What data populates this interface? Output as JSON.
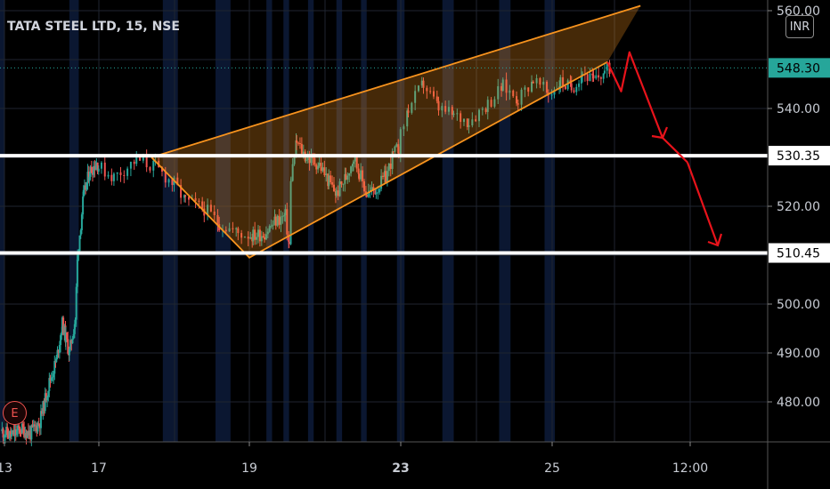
{
  "header": {
    "title": "TATA STEEL LTD, 15, NSE"
  },
  "currency_button": "INR",
  "earnings_marker": "E",
  "colors": {
    "up": "#26a69a",
    "down": "#ef5350",
    "pattern": "#f7931e",
    "support": "#ffffff",
    "arrow": "#e8131b"
  },
  "chart_data": {
    "type": "candlestick",
    "title": "TATA STEEL LTD, 15, NSE",
    "currency": "INR",
    "y_ticks": [
      480,
      490,
      500,
      510,
      520,
      530,
      540,
      550,
      560
    ],
    "y_tick_labels": [
      "480.00",
      "490.00",
      "500.00",
      "",
      "520.00",
      "",
      "540.00",
      "",
      "560.00"
    ],
    "ylim": [
      472,
      562
    ],
    "x_tick_labels": [
      "13",
      "17",
      "19",
      "23",
      "25",
      "12:00"
    ],
    "current_price": "548.30",
    "current_price_value": 548.3,
    "support_levels": [
      {
        "value": 530.35,
        "label": "530.35"
      },
      {
        "value": 510.45,
        "label": "510.45"
      }
    ],
    "rising_wedge": {
      "upper": [
        [
          17.7,
          530
        ],
        [
          26.6,
          561
        ]
      ],
      "lower": [
        [
          17.7,
          530
        ],
        [
          19.0,
          509.5
        ],
        [
          26.0,
          549.5
        ]
      ]
    },
    "projected_path": [
      [
        26.0,
        549.5
      ],
      [
        26.25,
        543.5
      ],
      [
        26.4,
        551.5
      ],
      [
        27.0,
        534
      ],
      [
        27.45,
        529
      ],
      [
        28.0,
        512
      ]
    ],
    "price_path": [
      [
        12.9,
        474
      ],
      [
        13.3,
        473
      ],
      [
        13.7,
        474.5
      ],
      [
        14.1,
        473.5
      ],
      [
        14.5,
        476
      ],
      [
        14.9,
        484
      ],
      [
        15.2,
        488.5
      ],
      [
        15.45,
        496
      ],
      [
        15.6,
        493
      ],
      [
        15.75,
        490
      ],
      [
        16.0,
        497
      ],
      [
        16.1,
        510
      ],
      [
        16.35,
        522
      ],
      [
        16.6,
        527
      ],
      [
        16.9,
        529
      ],
      [
        17.2,
        526
      ],
      [
        17.5,
        529.5
      ],
      [
        17.75,
        528
      ],
      [
        18.0,
        524.5
      ],
      [
        18.15,
        521
      ],
      [
        18.4,
        519.5
      ],
      [
        18.6,
        516.5
      ],
      [
        18.85,
        514.5
      ],
      [
        19.1,
        514
      ],
      [
        19.4,
        514.5
      ],
      [
        19.7,
        517
      ],
      [
        19.95,
        518
      ],
      [
        20.05,
        512
      ],
      [
        20.1,
        526
      ],
      [
        20.25,
        533
      ],
      [
        20.5,
        530
      ],
      [
        20.85,
        528.5
      ],
      [
        21.1,
        525
      ],
      [
        21.3,
        522.5
      ],
      [
        21.55,
        526
      ],
      [
        21.75,
        530
      ],
      [
        21.9,
        527
      ],
      [
        22.1,
        522.5
      ],
      [
        22.35,
        523.5
      ],
      [
        22.6,
        526
      ],
      [
        22.8,
        530.5
      ],
      [
        22.95,
        532
      ],
      [
        23.1,
        540
      ],
      [
        23.3,
        545
      ],
      [
        23.5,
        540
      ],
      [
        23.7,
        538.5
      ],
      [
        23.9,
        537.5
      ],
      [
        24.15,
        541
      ],
      [
        24.35,
        544.5
      ],
      [
        24.55,
        542
      ],
      [
        24.75,
        546
      ],
      [
        24.95,
        543
      ],
      [
        25.15,
        545.5
      ],
      [
        25.35,
        544
      ],
      [
        25.55,
        547.5
      ],
      [
        25.75,
        545.5
      ],
      [
        25.95,
        547.5
      ],
      [
        26.05,
        548.3
      ]
    ]
  }
}
